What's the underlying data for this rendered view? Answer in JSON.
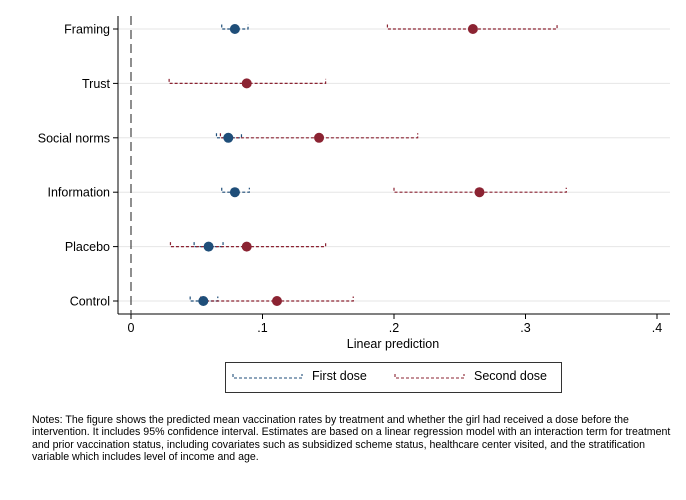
{
  "chart_data": {
    "type": "scatter",
    "subtype": "coefficient-plot-with-confidence-intervals",
    "orientation": "horizontal",
    "categories": [
      "Framing",
      "Trust",
      "Social norms",
      "Information",
      "Placebo",
      "Control"
    ],
    "series": [
      {
        "name": "First dose",
        "color": "#1f4e79",
        "values": [
          0.079,
          null,
          0.074,
          0.079,
          0.059,
          0.055
        ],
        "ci_low": [
          0.069,
          null,
          0.065,
          0.069,
          0.048,
          0.045
        ],
        "ci_high": [
          0.089,
          null,
          0.084,
          0.09,
          0.07,
          0.066
        ]
      },
      {
        "name": "Second dose",
        "color": "#8b2332",
        "values": [
          0.26,
          0.088,
          0.143,
          0.265,
          0.088,
          0.111
        ],
        "ci_low": [
          0.195,
          0.029,
          0.068,
          0.2,
          0.03,
          0.053
        ],
        "ci_high": [
          0.324,
          0.148,
          0.218,
          0.331,
          0.148,
          0.169
        ]
      }
    ],
    "xlabel": "Linear prediction",
    "ylabel": "",
    "xlim": [
      0,
      0.4
    ],
    "xticks": [
      0,
      0.1,
      0.2,
      0.3,
      0.4
    ],
    "xtick_labels": [
      "0",
      ".1",
      ".2",
      ".3",
      ".4"
    ],
    "reference_line_x": 0,
    "grid": "horizontal",
    "legend": {
      "position": "bottom-center",
      "entries": [
        "First dose",
        "Second dose"
      ]
    }
  },
  "notes": "Notes: The figure shows the predicted mean vaccination rates by treatment and whether the girl had received a dose before the intervention. It includes 95% confidence interval. Estimates are based on a linear regression model with an interaction term for treatment and prior vaccination status, including covariates such as subsidized scheme status, healthcare center visited, and the stratification variable which includes level of income and age."
}
